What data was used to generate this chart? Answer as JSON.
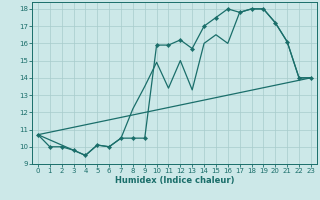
{
  "xlabel": "Humidex (Indice chaleur)",
  "bg_color": "#cce8e8",
  "line_color": "#1a6e6a",
  "grid_color": "#a8cccc",
  "xlim": [
    -0.5,
    23.5
  ],
  "ylim": [
    9,
    18.4
  ],
  "xticks": [
    0,
    1,
    2,
    3,
    4,
    5,
    6,
    7,
    8,
    9,
    10,
    11,
    12,
    13,
    14,
    15,
    16,
    17,
    18,
    19,
    20,
    21,
    22,
    23
  ],
  "yticks": [
    9,
    10,
    11,
    12,
    13,
    14,
    15,
    16,
    17,
    18
  ],
  "line1_x": [
    0,
    1,
    2,
    3,
    4,
    5,
    6,
    7,
    8,
    9,
    10,
    11,
    12,
    13,
    14,
    15,
    16,
    17,
    18,
    19,
    20,
    21,
    22,
    23
  ],
  "line1_y": [
    10.7,
    10.0,
    10.0,
    9.8,
    9.5,
    10.1,
    10.0,
    10.5,
    10.5,
    10.5,
    15.9,
    15.9,
    16.2,
    15.7,
    17.0,
    17.5,
    18.0,
    17.8,
    18.0,
    18.0,
    17.2,
    16.1,
    14.0,
    14.0
  ],
  "line2_x": [
    0,
    23
  ],
  "line2_y": [
    10.7,
    14.0
  ],
  "line3_x": [
    0,
    3,
    4,
    5,
    6,
    7,
    8,
    9,
    10,
    11,
    12,
    13,
    14,
    15,
    16,
    17,
    18,
    19,
    20,
    21,
    22,
    23
  ],
  "line3_y": [
    10.7,
    9.8,
    9.5,
    10.1,
    10.0,
    10.5,
    12.2,
    13.5,
    14.9,
    13.4,
    15.0,
    13.3,
    16.0,
    16.5,
    16.0,
    17.8,
    18.0,
    18.0,
    17.2,
    16.1,
    14.0,
    14.0
  ],
  "xlabel_fontsize": 6,
  "tick_fontsize": 5,
  "linewidth": 0.9,
  "marker_size": 2.2
}
